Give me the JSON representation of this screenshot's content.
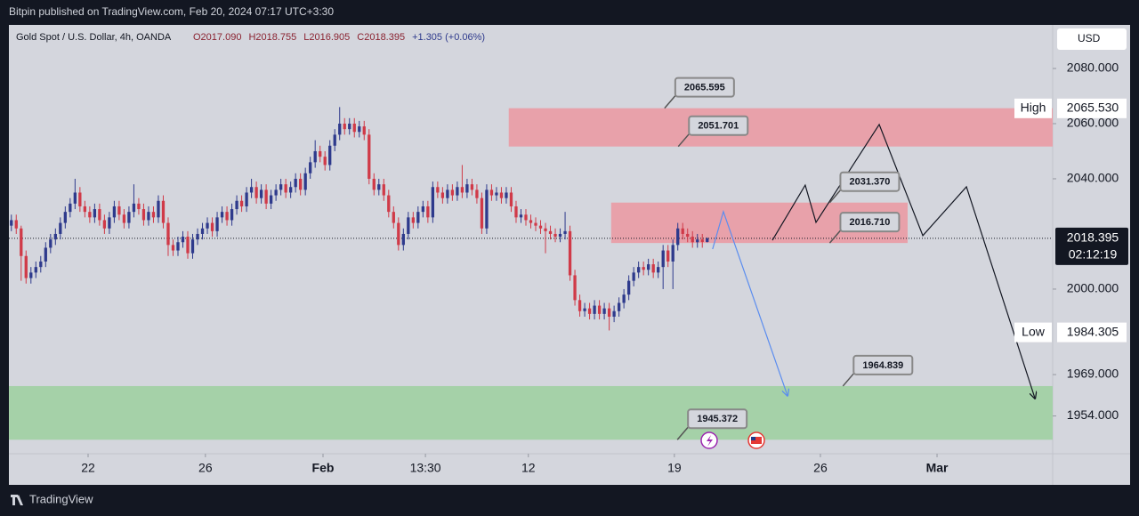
{
  "header": {
    "text": "Bitpin published on TradingView.com, Feb 20, 2024 07:17 UTC+3:30"
  },
  "footer": {
    "brand": "TradingView"
  },
  "chart_data": {
    "type": "candlestick",
    "title": "Gold Spot / U.S. Dollar, 4h, OANDA",
    "legend_values": [
      "O2017.090",
      "H2018.755",
      "L2016.905",
      "C2018.395",
      "+1.305 (+0.06%)"
    ],
    "currency": "USD",
    "up_color": "#2e3a8c",
    "down_color": "#d03a48",
    "xlim": [
      -0.5,
      212.5
    ],
    "xticks": [
      {
        "value": 15.66,
        "label": "22"
      },
      {
        "value": 39.6,
        "label": "26"
      },
      {
        "value": 63.6,
        "label": "Feb"
      },
      {
        "value": 84.5,
        "label": "13:30"
      },
      {
        "value": 105.5,
        "label": "12"
      },
      {
        "value": 135.3,
        "label": "19"
      },
      {
        "value": 165.1,
        "label": "26"
      },
      {
        "value": 188.9,
        "label": "Mar"
      }
    ],
    "ylim": [
      1940.3,
      2095.8
    ],
    "yticks": [
      {
        "value": 1954,
        "label": "1954.000"
      },
      {
        "value": 1969,
        "label": "1969.000"
      },
      {
        "value": 2000,
        "label": "2000.000"
      },
      {
        "value": 2040,
        "label": "2040.000"
      },
      {
        "value": 2060,
        "label": "2060.000"
      },
      {
        "value": 2080,
        "label": "2080.000"
      }
    ],
    "last_price": 2018.395,
    "countdown": "02:12:19",
    "high": {
      "name": "High",
      "value": {
        "value": 2065.53,
        "label": "2065.530"
      }
    },
    "low": {
      "name": "Low",
      "value": 1984.305
    },
    "ohlc": [
      [
        2023,
        2027,
        2021,
        2025
      ],
      [
        2025,
        2027,
        2020,
        2022
      ],
      [
        2022,
        2023,
        2003,
        2012
      ],
      [
        2012,
        2014,
        2002,
        2004
      ],
      [
        2004,
        2008,
        2002,
        2006
      ],
      [
        2006,
        2010,
        2004,
        2008
      ],
      [
        2008,
        2012,
        2006,
        2010
      ],
      [
        2010,
        2017,
        2008,
        2015
      ],
      [
        2015,
        2020,
        2013,
        2018
      ],
      [
        2018,
        2022,
        2016,
        2020
      ],
      [
        2020,
        2026,
        2018,
        2024
      ],
      [
        2024,
        2030,
        2022,
        2028
      ],
      [
        2028,
        2033,
        2026,
        2031
      ],
      [
        2031,
        2040,
        2029,
        2035
      ],
      [
        2035,
        2037,
        2028,
        2030
      ],
      [
        2030,
        2032,
        2026,
        2028
      ],
      [
        2028,
        2030,
        2024,
        2026
      ],
      [
        2026,
        2031,
        2024,
        2029
      ],
      [
        2029,
        2031,
        2023,
        2025
      ],
      [
        2025,
        2027,
        2020,
        2022
      ],
      [
        2022,
        2028,
        2020,
        2026
      ],
      [
        2026,
        2032,
        2024,
        2030
      ],
      [
        2030,
        2032,
        2025,
        2027
      ],
      [
        2027,
        2029,
        2022,
        2024
      ],
      [
        2024,
        2030,
        2022,
        2028
      ],
      [
        2028,
        2038,
        2026,
        2031
      ],
      [
        2031,
        2033,
        2027,
        2029
      ],
      [
        2029,
        2031,
        2023,
        2025
      ],
      [
        2025,
        2030,
        2023,
        2028
      ],
      [
        2028,
        2030,
        2024,
        2026
      ],
      [
        2026,
        2034,
        2024,
        2032
      ],
      [
        2032,
        2034,
        2022,
        2024
      ],
      [
        2024,
        2026,
        2012,
        2016
      ],
      [
        2016,
        2018,
        2012,
        2014
      ],
      [
        2014,
        2019,
        2012,
        2017
      ],
      [
        2017,
        2021,
        2015,
        2019
      ],
      [
        2019,
        2021,
        2011,
        2013
      ],
      [
        2013,
        2020,
        2011,
        2018
      ],
      [
        2018,
        2022,
        2016,
        2020
      ],
      [
        2020,
        2024,
        2018,
        2022
      ],
      [
        2022,
        2026,
        2020,
        2024
      ],
      [
        2024,
        2026,
        2019,
        2021
      ],
      [
        2021,
        2028,
        2019,
        2026
      ],
      [
        2026,
        2030,
        2024,
        2028
      ],
      [
        2028,
        2030,
        2023,
        2025
      ],
      [
        2025,
        2031,
        2023,
        2029
      ],
      [
        2029,
        2034,
        2027,
        2032
      ],
      [
        2032,
        2034,
        2028,
        2030
      ],
      [
        2030,
        2037,
        2028,
        2035
      ],
      [
        2035,
        2040,
        2033,
        2037
      ],
      [
        2037,
        2039,
        2031,
        2033
      ],
      [
        2033,
        2038,
        2031,
        2036
      ],
      [
        2036,
        2038,
        2029,
        2031
      ],
      [
        2031,
        2036,
        2029,
        2034
      ],
      [
        2034,
        2038,
        2032,
        2036
      ],
      [
        2036,
        2040,
        2034,
        2038
      ],
      [
        2038,
        2040,
        2033,
        2035
      ],
      [
        2035,
        2039,
        2033,
        2037
      ],
      [
        2037,
        2042,
        2035,
        2040
      ],
      [
        2040,
        2042,
        2034,
        2036
      ],
      [
        2036,
        2044,
        2034,
        2042
      ],
      [
        2042,
        2048,
        2040,
        2046
      ],
      [
        2046,
        2054,
        2044,
        2050
      ],
      [
        2050,
        2052,
        2046,
        2048
      ],
      [
        2048,
        2050,
        2043,
        2045
      ],
      [
        2045,
        2054,
        2043,
        2052
      ],
      [
        2052,
        2058,
        2050,
        2056
      ],
      [
        2056,
        2066,
        2054,
        2060
      ],
      [
        2060,
        2062,
        2056,
        2058
      ],
      [
        2058,
        2062,
        2056,
        2060
      ],
      [
        2060,
        2062,
        2055,
        2057
      ],
      [
        2057,
        2061,
        2055,
        2059
      ],
      [
        2059,
        2061,
        2054,
        2056
      ],
      [
        2056,
        2058,
        2038,
        2040
      ],
      [
        2040,
        2042,
        2034,
        2036
      ],
      [
        2036,
        2040,
        2034,
        2038
      ],
      [
        2038,
        2040,
        2032,
        2034
      ],
      [
        2034,
        2036,
        2026,
        2028
      ],
      [
        2028,
        2030,
        2022,
        2024
      ],
      [
        2024,
        2026,
        2014,
        2016
      ],
      [
        2016,
        2022,
        2014,
        2020
      ],
      [
        2020,
        2028,
        2018,
        2026
      ],
      [
        2026,
        2028,
        2022,
        2024
      ],
      [
        2024,
        2030,
        2022,
        2028
      ],
      [
        2028,
        2032,
        2026,
        2030
      ],
      [
        2030,
        2032,
        2024,
        2026
      ],
      [
        2026,
        2039,
        2024,
        2037
      ],
      [
        2037,
        2039,
        2033,
        2035
      ],
      [
        2035,
        2037,
        2031,
        2033
      ],
      [
        2033,
        2038,
        2031,
        2036
      ],
      [
        2036,
        2038,
        2032,
        2034
      ],
      [
        2034,
        2039,
        2032,
        2037
      ],
      [
        2037,
        2045,
        2033,
        2035
      ],
      [
        2035,
        2040,
        2033,
        2038
      ],
      [
        2038,
        2040,
        2034,
        2036
      ],
      [
        2036,
        2038,
        2031,
        2033
      ],
      [
        2033,
        2035,
        2020,
        2022
      ],
      [
        2022,
        2038,
        2020,
        2036
      ],
      [
        2036,
        2038,
        2032,
        2034
      ],
      [
        2034,
        2037,
        2032,
        2035
      ],
      [
        2035,
        2037,
        2031,
        2033
      ],
      [
        2033,
        2037,
        2031,
        2035
      ],
      [
        2035,
        2037,
        2028,
        2030
      ],
      [
        2030,
        2032,
        2024,
        2026
      ],
      [
        2026,
        2029,
        2024,
        2027
      ],
      [
        2027,
        2029,
        2023,
        2025
      ],
      [
        2025,
        2027,
        2022,
        2024
      ],
      [
        2024,
        2026,
        2021,
        2023
      ],
      [
        2023,
        2025,
        2020,
        2022
      ],
      [
        2022,
        2024,
        2013,
        2021
      ],
      [
        2021,
        2023,
        2018,
        2020
      ],
      [
        2020,
        2022,
        2017,
        2019
      ],
      [
        2019,
        2022,
        2017,
        2020
      ],
      [
        2020,
        2028,
        2018,
        2021
      ],
      [
        2021,
        2023,
        2003,
        2005
      ],
      [
        2005,
        2007,
        1994,
        1996
      ],
      [
        1996,
        1998,
        1990,
        1992
      ],
      [
        1992,
        1995,
        1990,
        1993
      ],
      [
        1993,
        1995,
        1989,
        1991
      ],
      [
        1991,
        1996,
        1989,
        1994
      ],
      [
        1994,
        1996,
        1989,
        1991
      ],
      [
        1991,
        1995,
        1989,
        1993
      ],
      [
        1993,
        1995,
        1985,
        1990
      ],
      [
        1990,
        1994,
        1988,
        1992
      ],
      [
        1992,
        1997,
        1990,
        1995
      ],
      [
        1995,
        2000,
        1993,
        1998
      ],
      [
        1998,
        2005,
        1996,
        2003
      ],
      [
        2003,
        2008,
        2001,
        2006
      ],
      [
        2006,
        2010,
        2004,
        2008
      ],
      [
        2008,
        2010,
        2005,
        2007
      ],
      [
        2007,
        2011,
        2005,
        2009
      ],
      [
        2009,
        2011,
        2004,
        2006
      ],
      [
        2006,
        2010,
        2004,
        2008
      ],
      [
        2008,
        2016,
        2000,
        2014
      ],
      [
        2014,
        2016,
        2008,
        2010
      ],
      [
        2010,
        2018,
        2000,
        2016
      ],
      [
        2016,
        2024,
        2014,
        2022
      ],
      [
        2022,
        2024,
        2018,
        2020
      ],
      [
        2020,
        2022,
        2017,
        2019
      ],
      [
        2019,
        2021,
        2015,
        2017
      ],
      [
        2017,
        2020,
        2015,
        2018
      ],
      [
        2018,
        2020,
        2015,
        2017.09
      ],
      [
        2017.09,
        2018.755,
        2016.905,
        2018.395
      ]
    ],
    "zones": [
      {
        "color": "#e8a1aa",
        "x": [
          101.5,
          212.5
        ],
        "y": [
          2051.701,
          2065.595
        ]
      },
      {
        "color": "#e8a1aa",
        "x": [
          122.4,
          182.9
        ],
        "y": [
          2016.71,
          2031.37
        ]
      },
      {
        "color": "#a5d1a8",
        "x": [
          -0.5,
          212.5
        ],
        "y": [
          1945.372,
          1964.839
        ]
      }
    ],
    "callouts": [
      {
        "value": 2065.595,
        "label": "2065.595",
        "x": 133.3
      },
      {
        "value": 2051.701,
        "label": "2051.701",
        "x": 136.1
      },
      {
        "value": 2031.37,
        "label": "2031.370",
        "x": 167.0
      },
      {
        "value": 2016.71,
        "label": "2016.710",
        "x": 167.0
      },
      {
        "value": 1964.839,
        "label": "1964.839",
        "x": 169.7
      },
      {
        "value": 1945.372,
        "label": "1945.372",
        "x": 135.9
      }
    ],
    "projections": [
      {
        "color": "#5b8def",
        "x": [
          143.1,
          145.3,
          158.4
        ],
        "y": [
          2014.5,
          2028.1,
          1961.3
        ]
      },
      {
        "color": "#131722",
        "x": [
          155.3,
          162.0,
          164.2,
          177.1,
          186.0,
          194.9,
          208.9
        ],
        "y": [
          2017.7,
          2037.7,
          2024.2,
          2059.7,
          2019.4,
          2037.1,
          1960.3
        ]
      }
    ]
  }
}
